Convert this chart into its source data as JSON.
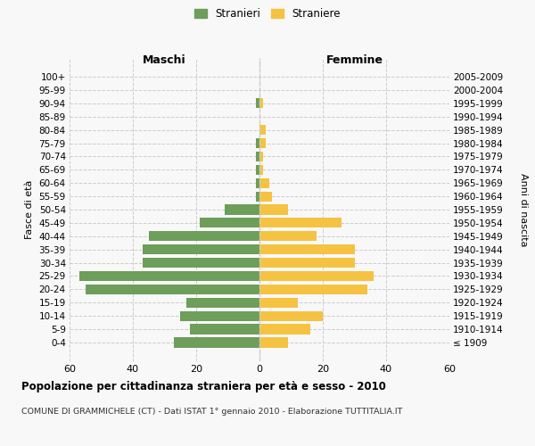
{
  "age_groups": [
    "100+",
    "95-99",
    "90-94",
    "85-89",
    "80-84",
    "75-79",
    "70-74",
    "65-69",
    "60-64",
    "55-59",
    "50-54",
    "45-49",
    "40-44",
    "35-39",
    "30-34",
    "25-29",
    "20-24",
    "15-19",
    "10-14",
    "5-9",
    "0-4"
  ],
  "birth_years": [
    "≤ 1909",
    "1910-1914",
    "1915-1919",
    "1920-1924",
    "1925-1929",
    "1930-1934",
    "1935-1939",
    "1940-1944",
    "1945-1949",
    "1950-1954",
    "1955-1959",
    "1960-1964",
    "1965-1969",
    "1970-1974",
    "1975-1979",
    "1980-1984",
    "1985-1989",
    "1990-1994",
    "1995-1999",
    "2000-2004",
    "2005-2009"
  ],
  "males": [
    0,
    0,
    1,
    0,
    0,
    1,
    1,
    1,
    1,
    1,
    11,
    19,
    35,
    37,
    37,
    57,
    55,
    23,
    25,
    22,
    27
  ],
  "females": [
    0,
    0,
    1,
    0,
    2,
    2,
    1,
    1,
    3,
    4,
    9,
    26,
    18,
    30,
    30,
    36,
    34,
    12,
    20,
    16,
    9
  ],
  "male_color": "#6d9e5a",
  "female_color": "#f5c242",
  "background_color": "#f8f8f8",
  "grid_color": "#cccccc",
  "title": "Popolazione per cittadinanza straniera per età e sesso - 2010",
  "subtitle": "COMUNE DI GRAMMICHELE (CT) - Dati ISTAT 1° gennaio 2010 - Elaborazione TUTTITALIA.IT",
  "ylabel_left": "Fasce di età",
  "ylabel_right": "Anni di nascita",
  "xlabel_left": "Maschi",
  "xlabel_right": "Femmine",
  "legend_male": "Stranieri",
  "legend_female": "Straniere",
  "xlim": 60
}
